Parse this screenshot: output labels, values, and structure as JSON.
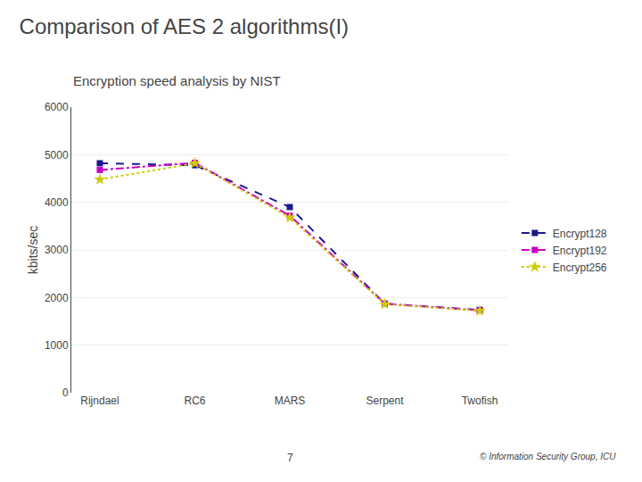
{
  "chart_data": {
    "type": "line",
    "title": "Comparison of AES 2 algorithms(I)",
    "subtitle": "Encryption speed analysis by NIST",
    "categories": [
      "Rijndael",
      "RC6",
      "MARS",
      "Serpent",
      "Twofish"
    ],
    "series": [
      {
        "name": "Encrypt128",
        "color": "#1a1a8c",
        "marker": "square",
        "line_style": "dash",
        "values": [
          4820,
          4780,
          3900,
          1870,
          1740
        ]
      },
      {
        "name": "Encrypt192",
        "color": "#cc00cc",
        "marker": "square",
        "line_style": "dashdot",
        "values": [
          4680,
          4830,
          3720,
          1870,
          1730
        ]
      },
      {
        "name": "Encrypt256",
        "color": "#cccc00",
        "marker": "star",
        "line_style": "dot",
        "values": [
          4480,
          4820,
          3680,
          1860,
          1720
        ]
      }
    ],
    "ylabel": "kbits/sec",
    "ylim": [
      0,
      6000
    ],
    "yticks": [
      0,
      1000,
      2000,
      3000,
      4000,
      5000,
      6000
    ],
    "grid": true,
    "legend": "right",
    "annotations": [
      "7",
      "© Information Security Group, ICU"
    ]
  }
}
